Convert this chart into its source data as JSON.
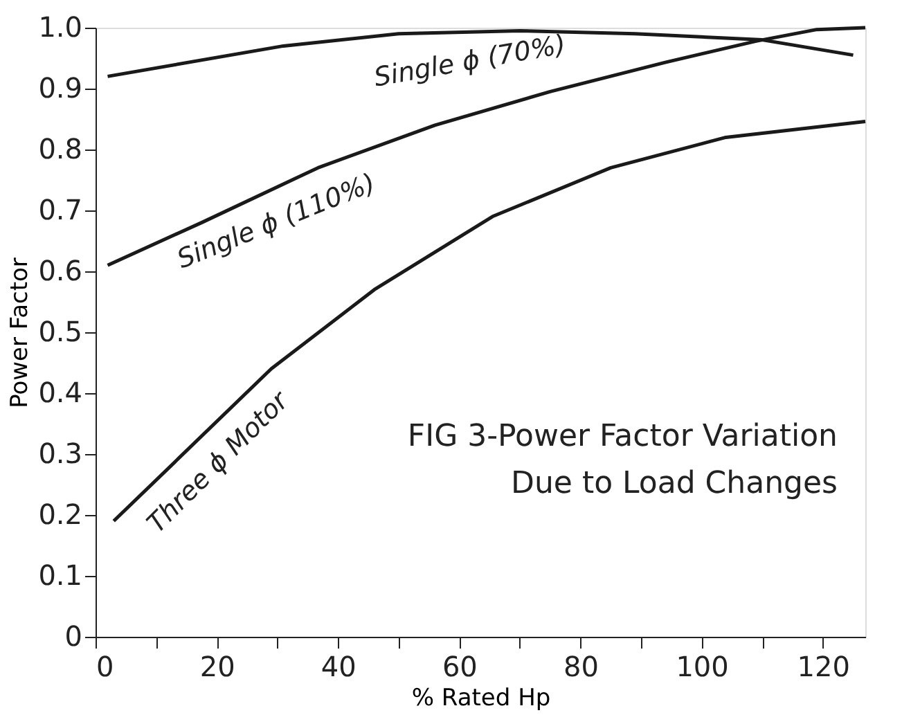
{
  "chart_data": {
    "type": "line",
    "title": "FIG 3-Power Factor Variation\nDue to Load Changes",
    "xlabel": "% Rated  Hp",
    "ylabel": "Power Factor",
    "xlim": [
      0,
      127
    ],
    "ylim": [
      0,
      1.0
    ],
    "xticks": [
      0,
      {
        "value": 10,
        "label": null
      },
      20,
      {
        "value": 30,
        "label": null
      },
      40,
      {
        "value": 50,
        "label": null
      },
      60,
      {
        "value": 70,
        "label": null
      },
      80,
      {
        "value": 90,
        "label": null
      },
      100,
      {
        "value": 110,
        "label": null
      },
      120
    ],
    "yticks": [
      0,
      0.1,
      0.2,
      0.3,
      0.4,
      0.5,
      0.6,
      0.7,
      0.8,
      0.9,
      {
        "value": 1.0,
        "label": "1.0"
      }
    ],
    "grid": false,
    "marker": "none",
    "line_style": "solid",
    "series": [
      {
        "name": "Single ϕ (70%)",
        "color": "#1a1a1a",
        "x": [
          2,
          31,
          50,
          70,
          89,
          110,
          125
        ],
        "values": [
          0.92,
          0.97,
          0.99,
          0.995,
          0.99,
          0.98,
          0.955
        ]
      },
      {
        "name": "Single ϕ (110%)",
        "color": "#1a1a1a",
        "x": [
          2,
          17.5,
          36.7,
          56,
          75,
          94,
          109,
          119,
          127
        ],
        "values": [
          0.61,
          0.68,
          0.77,
          0.84,
          0.895,
          0.943,
          0.978,
          0.997,
          1.0
        ]
      },
      {
        "name": "Three ϕ Motor",
        "color": "#1a1a1a",
        "x": [
          3,
          29,
          46,
          65.5,
          85,
          104,
          127
        ],
        "values": [
          0.19,
          0.44,
          0.57,
          0.69,
          0.77,
          0.82,
          0.846
        ]
      }
    ]
  }
}
